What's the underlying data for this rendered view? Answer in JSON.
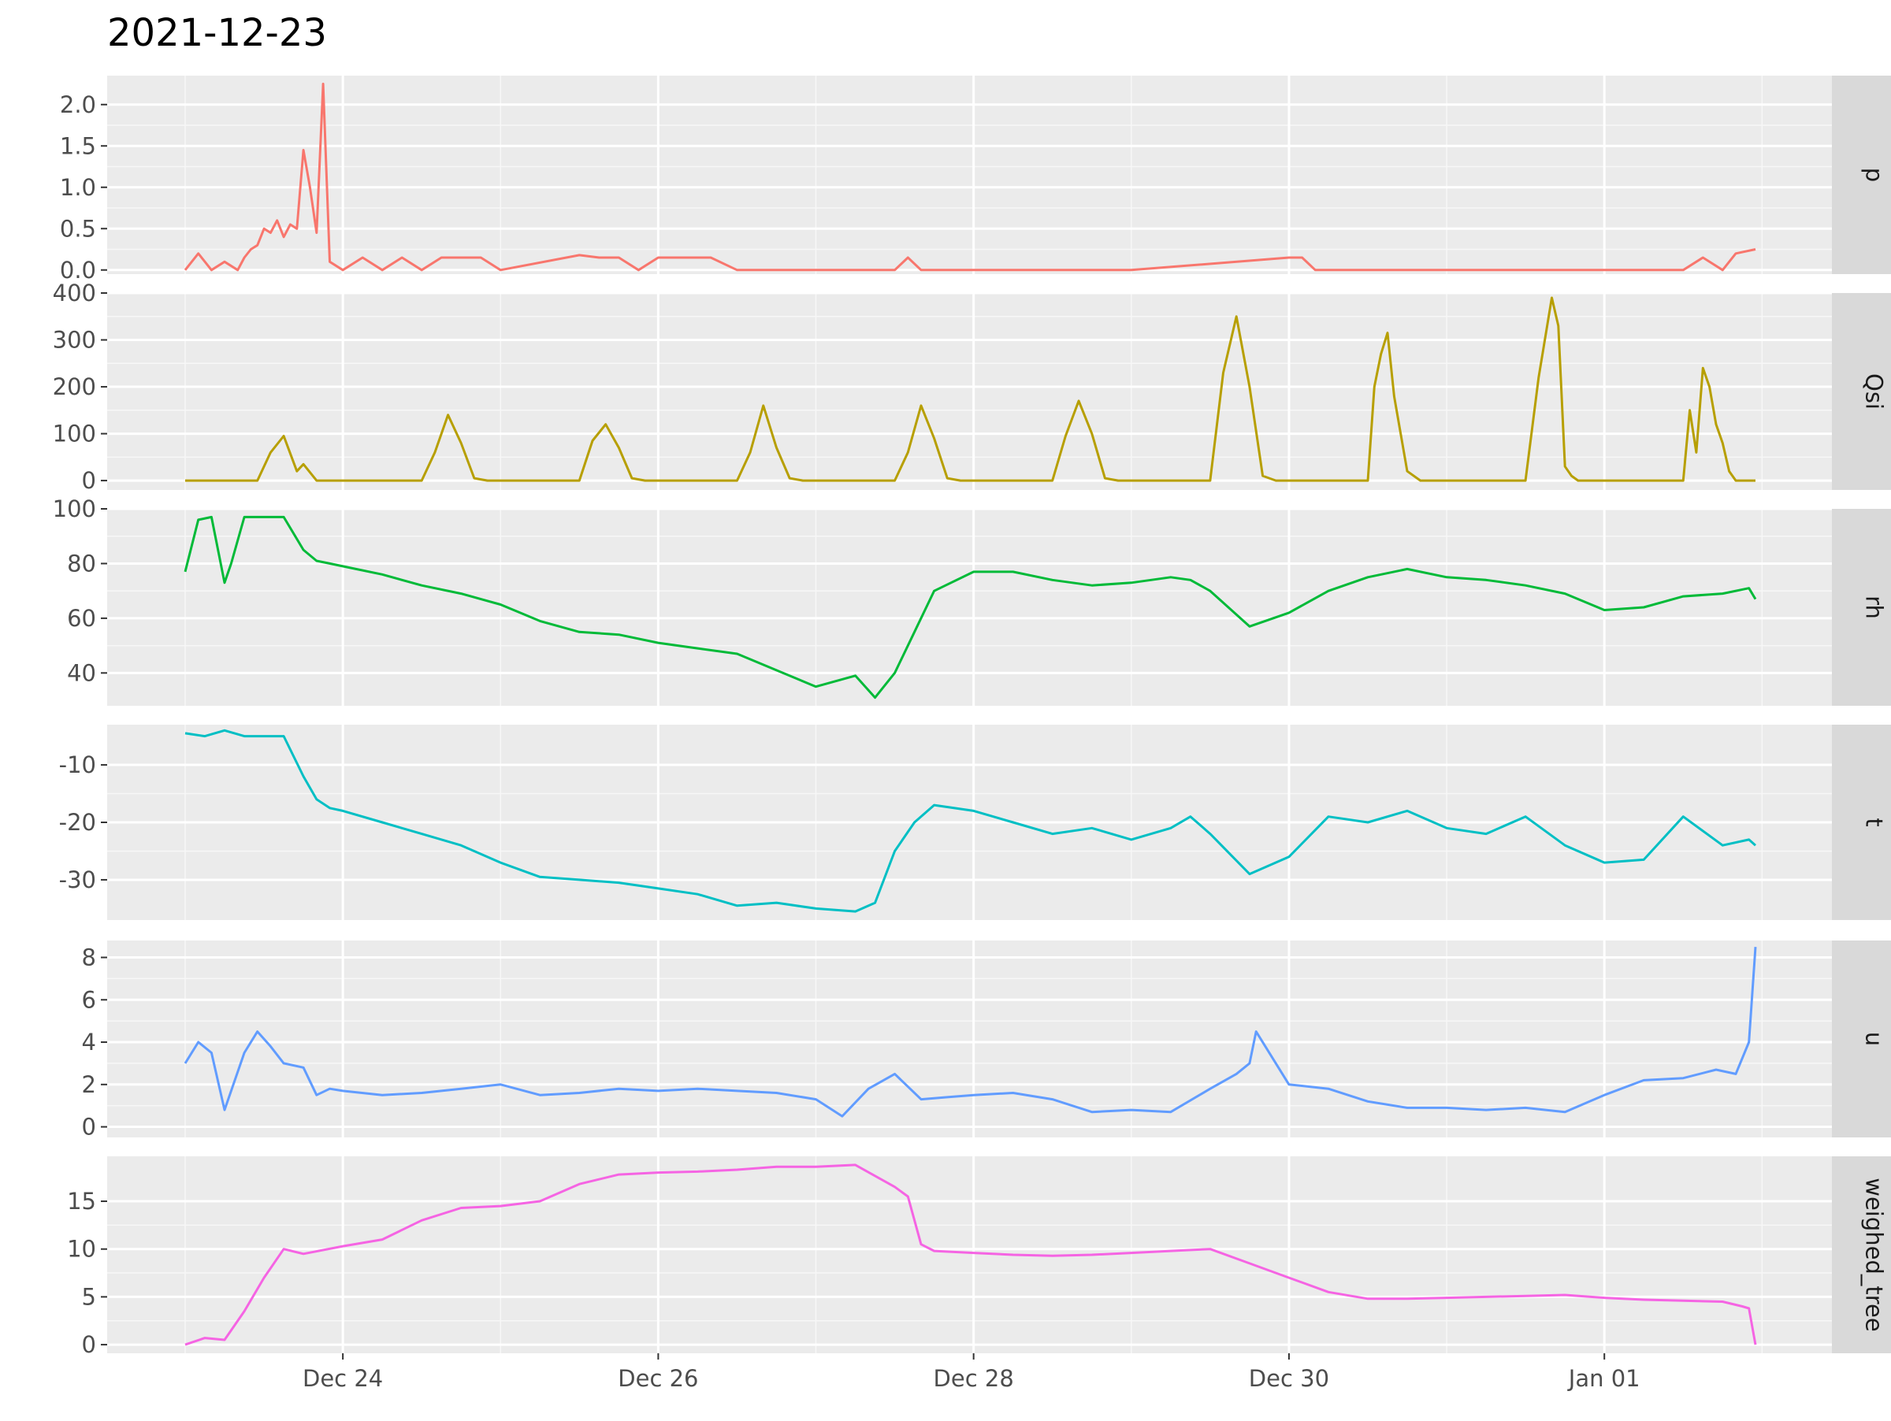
{
  "chart_data": {
    "type": "line",
    "title": "2021-12-23",
    "xlabel": "",
    "ylabel": "",
    "x_axis": {
      "type": "date",
      "range": [
        "2021-12-23T00:00",
        "2022-01-01T23:00"
      ],
      "tick_labels": [
        "Dec 24",
        "Dec 26",
        "Dec 28",
        "Dec 30",
        "Jan 01"
      ],
      "tick_dates": [
        "2021-12-24",
        "2021-12-26",
        "2021-12-28",
        "2021-12-30",
        "2022-01-01"
      ]
    },
    "panel_colors": [
      "#F8766D",
      "#B79F00",
      "#00BA38",
      "#00BFC4",
      "#619CFF",
      "#F564E3"
    ],
    "panels": [
      {
        "name": "p",
        "yrange": [
          -0.05,
          2.35
        ],
        "yticks": [
          0.0,
          0.5,
          1.0,
          1.5,
          2.0
        ],
        "ytick_labels": [
          "0.0",
          "0.5",
          "1.0",
          "1.5",
          "2.0"
        ],
        "x": [
          "2021-12-23T00:00",
          "2021-12-23T02:00",
          "2021-12-23T04:00",
          "2021-12-23T06:00",
          "2021-12-23T08:00",
          "2021-12-23T09:00",
          "2021-12-23T10:00",
          "2021-12-23T11:00",
          "2021-12-23T12:00",
          "2021-12-23T13:00",
          "2021-12-23T14:00",
          "2021-12-23T15:00",
          "2021-12-23T16:00",
          "2021-12-23T17:00",
          "2021-12-23T18:00",
          "2021-12-23T19:00",
          "2021-12-23T20:00",
          "2021-12-23T21:00",
          "2021-12-23T22:00",
          "2021-12-24T00:00",
          "2021-12-24T03:00",
          "2021-12-24T06:00",
          "2021-12-24T09:00",
          "2021-12-24T12:00",
          "2021-12-24T15:00",
          "2021-12-24T18:00",
          "2021-12-24T21:00",
          "2021-12-25T00:00",
          "2021-12-25T12:00",
          "2021-12-25T15:00",
          "2021-12-25T18:00",
          "2021-12-25T21:00",
          "2021-12-26T00:00",
          "2021-12-26T03:00",
          "2021-12-26T06:00",
          "2021-12-26T08:00",
          "2021-12-26T12:00",
          "2021-12-27T00:00",
          "2021-12-27T12:00",
          "2021-12-27T14:00",
          "2021-12-27T16:00",
          "2021-12-28T00:00",
          "2021-12-29T00:00",
          "2021-12-30T00:00",
          "2021-12-30T02:00",
          "2021-12-30T04:00",
          "2021-12-31T00:00",
          "2022-01-01T00:00",
          "2022-01-01T12:00",
          "2022-01-01T15:00",
          "2022-01-01T18:00",
          "2022-01-01T20:00",
          "2022-01-01T23:00"
        ],
        "y": [
          0.0,
          0.2,
          0.0,
          0.1,
          0.0,
          0.15,
          0.25,
          0.3,
          0.5,
          0.45,
          0.6,
          0.4,
          0.55,
          0.5,
          1.45,
          1.0,
          0.45,
          2.25,
          0.1,
          0.0,
          0.15,
          0.0,
          0.15,
          0.0,
          0.15,
          0.15,
          0.15,
          0.0,
          0.18,
          0.15,
          0.15,
          0.0,
          0.15,
          0.15,
          0.15,
          0.15,
          0.0,
          0.0,
          0.0,
          0.15,
          0.0,
          0.0,
          0.0,
          0.15,
          0.15,
          0.0,
          0.0,
          0.0,
          0.0,
          0.15,
          0.0,
          0.2,
          0.25
        ]
      },
      {
        "name": "Qsi",
        "yrange": [
          -20,
          400
        ],
        "yticks": [
          0,
          100,
          200,
          300,
          400
        ],
        "ytick_labels": [
          "0",
          "100",
          "200",
          "300",
          "400"
        ],
        "x": [
          "2021-12-23T00:00",
          "2021-12-23T11:00",
          "2021-12-23T13:00",
          "2021-12-23T15:00",
          "2021-12-23T17:00",
          "2021-12-23T18:00",
          "2021-12-23T20:00",
          "2021-12-23T22:00",
          "2021-12-24T12:00",
          "2021-12-24T14:00",
          "2021-12-24T16:00",
          "2021-12-24T18:00",
          "2021-12-24T20:00",
          "2021-12-24T22:00",
          "2021-12-25T12:00",
          "2021-12-25T14:00",
          "2021-12-25T16:00",
          "2021-12-25T18:00",
          "2021-12-25T20:00",
          "2021-12-25T22:00",
          "2021-12-26T12:00",
          "2021-12-26T14:00",
          "2021-12-26T16:00",
          "2021-12-26T18:00",
          "2021-12-26T20:00",
          "2021-12-26T22:00",
          "2021-12-27T12:00",
          "2021-12-27T14:00",
          "2021-12-27T16:00",
          "2021-12-27T18:00",
          "2021-12-27T20:00",
          "2021-12-27T22:00",
          "2021-12-28T12:00",
          "2021-12-28T14:00",
          "2021-12-28T16:00",
          "2021-12-28T18:00",
          "2021-12-28T20:00",
          "2021-12-28T22:00",
          "2021-12-29T12:00",
          "2021-12-29T14:00",
          "2021-12-29T16:00",
          "2021-12-29T18:00",
          "2021-12-29T20:00",
          "2021-12-29T22:00",
          "2021-12-30T12:00",
          "2021-12-30T13:00",
          "2021-12-30T14:00",
          "2021-12-30T15:00",
          "2021-12-30T16:00",
          "2021-12-30T17:00",
          "2021-12-30T18:00",
          "2021-12-30T20:00",
          "2021-12-31T12:00",
          "2021-12-31T14:00",
          "2021-12-31T16:00",
          "2021-12-31T17:00",
          "2021-12-31T18:00",
          "2021-12-31T19:00",
          "2021-12-31T20:00",
          "2022-01-01T12:00",
          "2022-01-01T13:00",
          "2022-01-01T14:00",
          "2022-01-01T15:00",
          "2022-01-01T16:00",
          "2022-01-01T17:00",
          "2022-01-01T18:00",
          "2022-01-01T19:00",
          "2022-01-01T20:00",
          "2022-01-01T23:00"
        ],
        "y": [
          0,
          0,
          60,
          95,
          20,
          35,
          0,
          0,
          0,
          60,
          140,
          80,
          5,
          0,
          0,
          85,
          120,
          70,
          5,
          0,
          0,
          60,
          160,
          70,
          5,
          0,
          0,
          60,
          160,
          90,
          5,
          0,
          0,
          95,
          170,
          100,
          5,
          0,
          0,
          230,
          350,
          200,
          10,
          0,
          0,
          200,
          270,
          315,
          180,
          100,
          20,
          0,
          0,
          220,
          390,
          330,
          30,
          10,
          0,
          0,
          150,
          60,
          240,
          200,
          120,
          80,
          20,
          0,
          0
        ]
      },
      {
        "name": "rh",
        "yrange": [
          28,
          100
        ],
        "yticks": [
          40,
          60,
          80,
          100
        ],
        "ytick_labels": [
          "40",
          "60",
          "80",
          "100"
        ],
        "x": [
          "2021-12-23T00:00",
          "2021-12-23T02:00",
          "2021-12-23T04:00",
          "2021-12-23T06:00",
          "2021-12-23T07:00",
          "2021-12-23T09:00",
          "2021-12-23T11:00",
          "2021-12-23T15:00",
          "2021-12-23T18:00",
          "2021-12-23T20:00",
          "2021-12-23T22:00",
          "2021-12-24T00:00",
          "2021-12-24T06:00",
          "2021-12-24T12:00",
          "2021-12-24T18:00",
          "2021-12-25T00:00",
          "2021-12-25T06:00",
          "2021-12-25T12:00",
          "2021-12-25T18:00",
          "2021-12-26T00:00",
          "2021-12-26T06:00",
          "2021-12-26T12:00",
          "2021-12-26T18:00",
          "2021-12-27T00:00",
          "2021-12-27T06:00",
          "2021-12-27T09:00",
          "2021-12-27T12:00",
          "2021-12-27T15:00",
          "2021-12-27T18:00",
          "2021-12-28T00:00",
          "2021-12-28T06:00",
          "2021-12-28T12:00",
          "2021-12-28T18:00",
          "2021-12-29T00:00",
          "2021-12-29T06:00",
          "2021-12-29T09:00",
          "2021-12-29T12:00",
          "2021-12-29T18:00",
          "2021-12-30T00:00",
          "2021-12-30T06:00",
          "2021-12-30T12:00",
          "2021-12-30T18:00",
          "2021-12-31T00:00",
          "2021-12-31T06:00",
          "2021-12-31T12:00",
          "2021-12-31T18:00",
          "2022-01-01T00:00",
          "2022-01-01T06:00",
          "2022-01-01T12:00",
          "2022-01-01T18:00",
          "2022-01-01T22:00",
          "2022-01-01T23:00"
        ],
        "y": [
          77,
          96,
          97,
          73,
          80,
          97,
          97,
          97,
          85,
          81,
          80,
          79,
          76,
          72,
          69,
          65,
          59,
          55,
          54,
          51,
          49,
          47,
          41,
          35,
          39,
          31,
          40,
          55,
          70,
          77,
          77,
          74,
          72,
          73,
          75,
          74,
          70,
          57,
          62,
          70,
          75,
          78,
          75,
          74,
          72,
          69,
          63,
          64,
          68,
          69,
          71,
          67
        ]
      },
      {
        "name": "t",
        "yrange": [
          -37,
          -3
        ],
        "yticks": [
          -30,
          -20,
          -10
        ],
        "ytick_labels": [
          "-30",
          "-20",
          "-10"
        ],
        "x": [
          "2021-12-23T00:00",
          "2021-12-23T03:00",
          "2021-12-23T06:00",
          "2021-12-23T09:00",
          "2021-12-23T12:00",
          "2021-12-23T15:00",
          "2021-12-23T18:00",
          "2021-12-23T20:00",
          "2021-12-23T22:00",
          "2021-12-24T00:00",
          "2021-12-24T06:00",
          "2021-12-24T12:00",
          "2021-12-24T18:00",
          "2021-12-25T00:00",
          "2021-12-25T06:00",
          "2021-12-25T12:00",
          "2021-12-25T18:00",
          "2021-12-26T00:00",
          "2021-12-26T06:00",
          "2021-12-26T12:00",
          "2021-12-26T18:00",
          "2021-12-27T00:00",
          "2021-12-27T06:00",
          "2021-12-27T09:00",
          "2021-12-27T12:00",
          "2021-12-27T15:00",
          "2021-12-27T18:00",
          "2021-12-28T00:00",
          "2021-12-28T06:00",
          "2021-12-28T12:00",
          "2021-12-28T18:00",
          "2021-12-29T00:00",
          "2021-12-29T06:00",
          "2021-12-29T09:00",
          "2021-12-29T12:00",
          "2021-12-29T18:00",
          "2021-12-30T00:00",
          "2021-12-30T06:00",
          "2021-12-30T12:00",
          "2021-12-30T18:00",
          "2021-12-31T00:00",
          "2021-12-31T06:00",
          "2021-12-31T12:00",
          "2021-12-31T18:00",
          "2022-01-01T00:00",
          "2022-01-01T06:00",
          "2022-01-01T12:00",
          "2022-01-01T18:00",
          "2022-01-01T22:00",
          "2022-01-01T23:00"
        ],
        "y": [
          -4.5,
          -5,
          -4,
          -5,
          -5,
          -5,
          -12,
          -16,
          -17.5,
          -18,
          -20,
          -22,
          -24,
          -27,
          -29.5,
          -30,
          -30.5,
          -31.5,
          -32.5,
          -34.5,
          -34,
          -35,
          -35.5,
          -34,
          -25,
          -20,
          -17,
          -18,
          -20,
          -22,
          -21,
          -23,
          -21,
          -19,
          -22,
          -29,
          -26,
          -19,
          -20,
          -18,
          -21,
          -22,
          -19,
          -24,
          -27,
          -26.5,
          -19,
          -24,
          -23,
          -24
        ]
      },
      {
        "name": "u",
        "yrange": [
          -0.5,
          8.8
        ],
        "yticks": [
          0,
          2,
          4,
          6,
          8
        ],
        "ytick_labels": [
          "0",
          "2",
          "4",
          "6",
          "8"
        ],
        "x": [
          "2021-12-23T00:00",
          "2021-12-23T02:00",
          "2021-12-23T04:00",
          "2021-12-23T06:00",
          "2021-12-23T09:00",
          "2021-12-23T11:00",
          "2021-12-23T13:00",
          "2021-12-23T15:00",
          "2021-12-23T18:00",
          "2021-12-23T20:00",
          "2021-12-23T22:00",
          "2021-12-24T00:00",
          "2021-12-24T06:00",
          "2021-12-24T12:00",
          "2021-12-24T18:00",
          "2021-12-25T00:00",
          "2021-12-25T06:00",
          "2021-12-25T12:00",
          "2021-12-25T18:00",
          "2021-12-26T00:00",
          "2021-12-26T06:00",
          "2021-12-26T12:00",
          "2021-12-26T18:00",
          "2021-12-27T00:00",
          "2021-12-27T04:00",
          "2021-12-27T08:00",
          "2021-12-27T12:00",
          "2021-12-27T16:00",
          "2021-12-27T20:00",
          "2021-12-28T00:00",
          "2021-12-28T06:00",
          "2021-12-28T12:00",
          "2021-12-28T18:00",
          "2021-12-29T00:00",
          "2021-12-29T06:00",
          "2021-12-29T12:00",
          "2021-12-29T16:00",
          "2021-12-29T18:00",
          "2021-12-29T19:00",
          "2021-12-30T00:00",
          "2021-12-30T06:00",
          "2021-12-30T12:00",
          "2021-12-30T18:00",
          "2021-12-31T00:00",
          "2021-12-31T06:00",
          "2021-12-31T12:00",
          "2021-12-31T18:00",
          "2022-01-01T00:00",
          "2022-01-01T06:00",
          "2022-01-01T12:00",
          "2022-01-01T17:00",
          "2022-01-01T20:00",
          "2022-01-01T22:00",
          "2022-01-01T23:00"
        ],
        "y": [
          3,
          4,
          3.5,
          0.8,
          3.5,
          4.5,
          3.8,
          3,
          2.8,
          1.5,
          1.8,
          1.7,
          1.5,
          1.6,
          1.8,
          2,
          1.5,
          1.6,
          1.8,
          1.7,
          1.8,
          1.7,
          1.6,
          1.3,
          0.5,
          1.8,
          2.5,
          1.3,
          1.4,
          1.5,
          1.6,
          1.3,
          0.7,
          0.8,
          0.7,
          1.8,
          2.5,
          3,
          4.5,
          2,
          1.8,
          1.2,
          0.9,
          0.9,
          0.8,
          0.9,
          0.7,
          1.5,
          2.2,
          2.3,
          2.7,
          2.5,
          4,
          8.5
        ]
      },
      {
        "name": "weighed_tree",
        "yrange": [
          -0.9,
          19.7
        ],
        "yticks": [
          0,
          5,
          10,
          15
        ],
        "ytick_labels": [
          "0",
          "5",
          "10",
          "15"
        ],
        "x": [
          "2021-12-23T00:00",
          "2021-12-23T03:00",
          "2021-12-23T06:00",
          "2021-12-23T09:00",
          "2021-12-23T12:00",
          "2021-12-23T15:00",
          "2021-12-23T18:00",
          "2021-12-24T00:00",
          "2021-12-24T06:00",
          "2021-12-24T12:00",
          "2021-12-24T18:00",
          "2021-12-25T00:00",
          "2021-12-25T06:00",
          "2021-12-25T12:00",
          "2021-12-25T18:00",
          "2021-12-26T00:00",
          "2021-12-26T06:00",
          "2021-12-26T12:00",
          "2021-12-26T18:00",
          "2021-12-27T00:00",
          "2021-12-27T06:00",
          "2021-12-27T12:00",
          "2021-12-27T14:00",
          "2021-12-27T16:00",
          "2021-12-27T18:00",
          "2021-12-28T00:00",
          "2021-12-28T06:00",
          "2021-12-28T12:00",
          "2021-12-28T18:00",
          "2021-12-29T00:00",
          "2021-12-29T06:00",
          "2021-12-29T12:00",
          "2021-12-29T18:00",
          "2021-12-30T00:00",
          "2021-12-30T06:00",
          "2021-12-30T12:00",
          "2021-12-30T18:00",
          "2021-12-31T00:00",
          "2021-12-31T06:00",
          "2021-12-31T12:00",
          "2021-12-31T18:00",
          "2022-01-01T00:00",
          "2022-01-01T06:00",
          "2022-01-01T12:00",
          "2022-01-01T18:00",
          "2022-01-01T21:00",
          "2022-01-01T22:00",
          "2022-01-01T23:00"
        ],
        "y": [
          0,
          0.7,
          0.5,
          3.5,
          7,
          10,
          9.5,
          10.3,
          11,
          13,
          14.3,
          14.5,
          15,
          16.8,
          17.8,
          18,
          18.1,
          18.3,
          18.6,
          18.6,
          18.8,
          16.5,
          15.5,
          10.5,
          9.8,
          9.6,
          9.4,
          9.3,
          9.4,
          9.6,
          9.8,
          10,
          8.5,
          7,
          5.5,
          4.8,
          4.8,
          4.9,
          5,
          5.1,
          5.2,
          4.9,
          4.7,
          4.6,
          4.5,
          4.0,
          3.8,
          0
        ]
      }
    ]
  }
}
